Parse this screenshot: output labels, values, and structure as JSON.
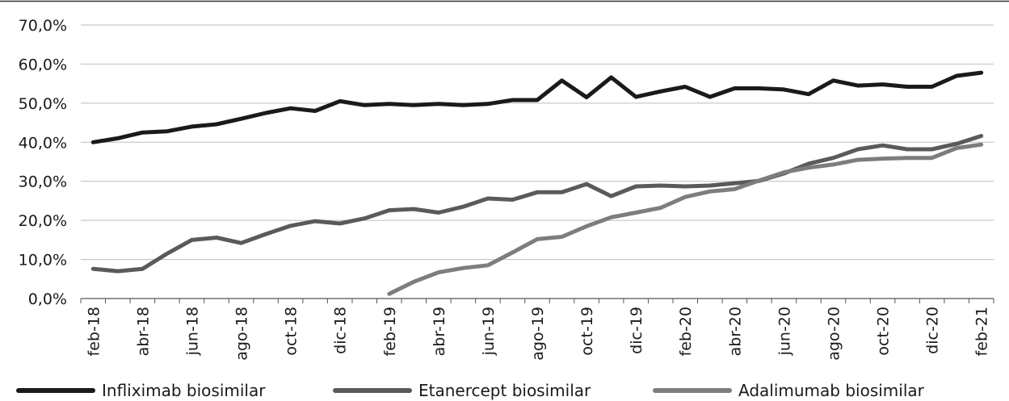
{
  "chart_data": {
    "type": "line",
    "title": "",
    "xlabel": "",
    "ylabel": "",
    "ylim": [
      0,
      70
    ],
    "y_ticks": [
      "0,0%",
      "10,0%",
      "20,0%",
      "30,0%",
      "40,0%",
      "50,0%",
      "60,0%",
      "70,0%"
    ],
    "grid": true,
    "legend_position": "bottom",
    "x": [
      "feb-18",
      "mar-18",
      "abr-18",
      "may-18",
      "jun-18",
      "jul-18",
      "ago-18",
      "sep-18",
      "oct-18",
      "nov-18",
      "dic-18",
      "ene-19",
      "feb-19",
      "mar-19",
      "abr-19",
      "may-19",
      "jun-19",
      "jul-19",
      "ago-19",
      "sep-19",
      "oct-19",
      "nov-19",
      "dic-19",
      "ene-20",
      "feb-20",
      "mar-20",
      "abr-20",
      "may-20",
      "jun-20",
      "jul-20",
      "ago-20",
      "sep-20",
      "oct-20",
      "nov-20",
      "dic-20",
      "ene-21",
      "feb-21"
    ],
    "x_tick_labels": [
      "feb-18",
      "abr-18",
      "jun-18",
      "ago-18",
      "oct-18",
      "dic-18",
      "feb-19",
      "abr-19",
      "jun-19",
      "ago-19",
      "oct-19",
      "dic-19",
      "feb-20",
      "abr-20",
      "jun-20",
      "ago-20",
      "oct-20",
      "dic-20",
      "feb-21"
    ],
    "series": [
      {
        "name": "Infliximab biosimilar",
        "color": "#1a1a1a",
        "values": [
          40.0,
          41.0,
          42.5,
          42.8,
          44.0,
          44.6,
          46.0,
          47.5,
          48.7,
          48.0,
          50.5,
          49.5,
          49.8,
          49.5,
          49.8,
          49.5,
          49.8,
          50.8,
          50.8,
          55.8,
          51.5,
          56.6,
          51.6,
          53.0,
          54.2,
          51.6,
          53.8,
          53.8,
          53.5,
          52.3,
          55.8,
          54.5,
          54.8,
          54.2,
          54.2,
          57.0,
          57.8
        ]
      },
      {
        "name": "Etanercept biosimilar",
        "color": "#5a5a5a",
        "values": [
          7.6,
          7.0,
          7.6,
          11.5,
          15.0,
          15.6,
          14.2,
          16.5,
          18.6,
          19.8,
          19.2,
          20.5,
          22.6,
          22.9,
          22.0,
          23.5,
          25.6,
          25.3,
          27.2,
          27.2,
          29.3,
          26.2,
          28.7,
          28.9,
          28.7,
          28.9,
          29.5,
          30.1,
          32.0,
          34.5,
          36.0,
          38.2,
          39.2,
          38.2,
          38.2,
          39.6,
          41.6
        ]
      },
      {
        "name": "Adalimumab biosimilar",
        "color": "#7d7d7d",
        "values": [
          null,
          null,
          null,
          null,
          null,
          null,
          null,
          null,
          null,
          null,
          null,
          null,
          1.2,
          4.3,
          6.7,
          7.8,
          8.5,
          11.8,
          15.2,
          15.8,
          18.5,
          20.8,
          22.0,
          23.2,
          26.0,
          27.4,
          28.0,
          30.2,
          32.3,
          33.5,
          34.3,
          35.5,
          35.8,
          36.0,
          36.0,
          38.5,
          39.4
        ]
      }
    ]
  }
}
